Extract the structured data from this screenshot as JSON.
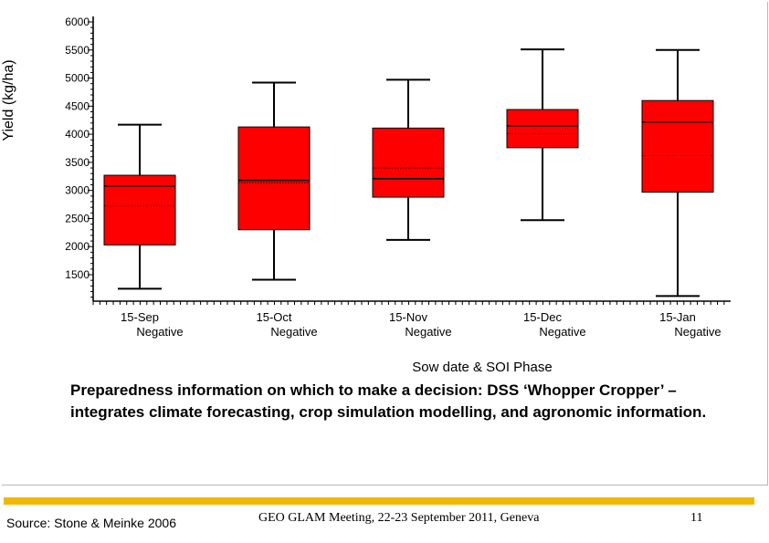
{
  "chart_data": {
    "type": "boxplot",
    "title": "",
    "ylabel": "Yield (kg/ha)",
    "xlabel": "Sow date & SOI Phase",
    "ylim": [
      1000,
      6000
    ],
    "yticks": [
      1500,
      2000,
      2500,
      3000,
      3500,
      4000,
      4500,
      5000,
      5500,
      6000
    ],
    "categories": [
      {
        "date": "15-Sep",
        "phase": "Negative"
      },
      {
        "date": "15-Oct",
        "phase": "Negative"
      },
      {
        "date": "15-Nov",
        "phase": "Negative"
      },
      {
        "date": "15-Dec",
        "phase": "Negative"
      },
      {
        "date": "15-Jan",
        "phase": "Negative"
      }
    ],
    "boxes": [
      {
        "min": 1250,
        "q1": 2030,
        "median": 3080,
        "mean": 2730,
        "q3": 3270,
        "max": 4170
      },
      {
        "min": 1410,
        "q1": 2300,
        "median": 3180,
        "mean": 3140,
        "q3": 4130,
        "max": 4920
      },
      {
        "min": 2120,
        "q1": 2880,
        "median": 3210,
        "mean": 3400,
        "q3": 4110,
        "max": 4970
      },
      {
        "min": 2470,
        "q1": 3760,
        "median": 4150,
        "mean": 4010,
        "q3": 4440,
        "max": 5510
      },
      {
        "min": 1120,
        "q1": 2970,
        "median": 4220,
        "mean": 3620,
        "q3": 4600,
        "max": 5500
      }
    ],
    "grid": false,
    "colors": {
      "box_fill": "#ff0000",
      "box_edge": "#000000"
    }
  },
  "caption": "Preparedness information on which to make a decision: DSS ‘Whopper Cropper’ – integrates climate forecasting, crop simulation modelling, and agronomic information.",
  "footer": {
    "source": "Source: Stone & Meinke 2006",
    "meeting": "GEO GLAM Meeting, 22-23 September 2011, Geneva",
    "page": "11",
    "bar_color": "#f2b705"
  }
}
